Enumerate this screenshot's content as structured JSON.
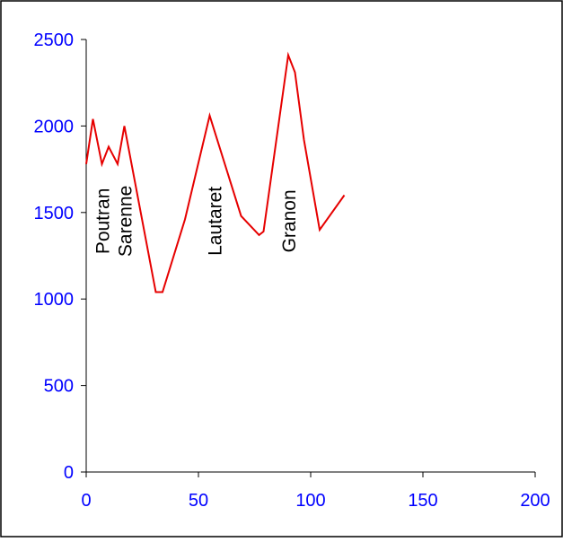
{
  "chart_data": {
    "type": "line",
    "title": "",
    "xlabel": "",
    "ylabel": "",
    "xlim": [
      0,
      200
    ],
    "ylim": [
      0,
      2500
    ],
    "x_ticks": [
      0,
      50,
      100,
      150,
      200
    ],
    "y_ticks": [
      0,
      500,
      1000,
      1500,
      2000,
      2500
    ],
    "x_tick_labels": [
      "0",
      "50",
      "100",
      "150",
      "200"
    ],
    "y_tick_labels": [
      "0",
      "500",
      "1000",
      "1500",
      "2000",
      "2500"
    ],
    "grid": false,
    "legend": "none",
    "series": [
      {
        "color": "#e60000",
        "x": [
          0,
          3,
          7,
          10,
          14,
          17,
          31,
          34,
          44,
          55,
          69,
          77,
          79,
          90,
          93,
          97,
          104,
          115
        ],
        "y": [
          1780,
          2040,
          1780,
          1880,
          1780,
          2000,
          1040,
          1040,
          1460,
          2060,
          1480,
          1370,
          1390,
          2410,
          2310,
          1920,
          1400,
          1600
        ]
      }
    ],
    "annotations": [
      {
        "text": "Poutran",
        "x": 7,
        "y": 1450,
        "rotation": -90
      },
      {
        "text": "Sarenne",
        "x": 17,
        "y": 1450,
        "rotation": -90
      },
      {
        "text": "Lautaret",
        "x": 57,
        "y": 1450,
        "rotation": -90
      },
      {
        "text": "Granon",
        "x": 90,
        "y": 1450,
        "rotation": -90
      }
    ],
    "colors": {
      "axis": "#000000",
      "tick_label": "#0000ff",
      "annotation": "#000000",
      "border": "#000000"
    }
  }
}
